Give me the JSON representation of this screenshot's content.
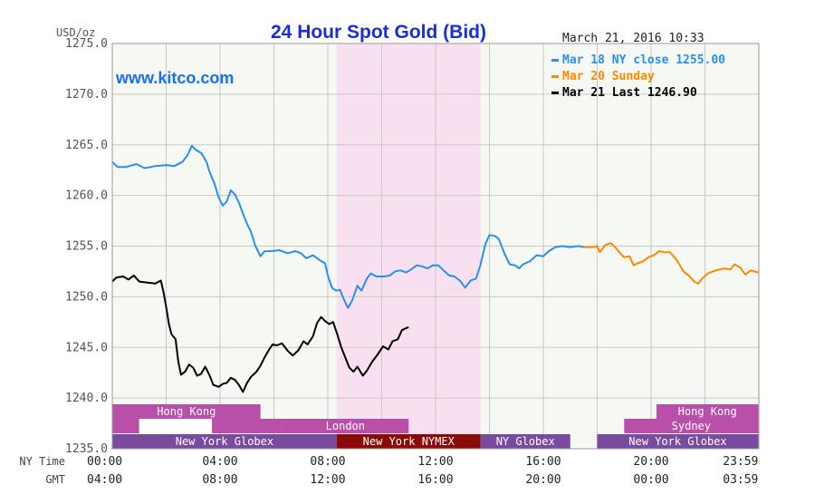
{
  "chart_data": {
    "type": "line",
    "title": "24 Hour Spot Gold (Bid)",
    "watermark": "www.kitco.com",
    "timestamp": "March 21, 2016 10:33",
    "y_unit_label": "USD/oz",
    "ylim": [
      1235.0,
      1275.0
    ],
    "y_ticks": [
      "1275.0",
      "1270.0",
      "1265.0",
      "1260.0",
      "1255.0",
      "1250.0",
      "1245.0",
      "1240.0",
      "1235.0"
    ],
    "xlim": [
      0,
      24
    ],
    "x_tick_rows": [
      {
        "label": "NY Time",
        "ticks": [
          "00:00",
          "04:00",
          "08:00",
          "12:00",
          "16:00",
          "20:00",
          "23:59"
        ]
      },
      {
        "label": "GMT",
        "ticks": [
          "04:00",
          "08:00",
          "12:00",
          "16:00",
          "20:00",
          "00:00",
          "03:59"
        ]
      }
    ],
    "x_tick_hours": [
      0,
      4,
      8,
      12,
      16,
      20,
      23.98
    ],
    "grid": true,
    "highlight_band": {
      "from": 8.33,
      "to": 13.67,
      "color": "#f8e0f0"
    },
    "legend_position": "top-right",
    "legend": [
      {
        "label": "Mar 18 NY close 1255.00",
        "color": "#2a8fef"
      },
      {
        "label": "Mar 20 Sunday",
        "color": "#ff8800"
      },
      {
        "label": "Mar 21 Last 1246.90",
        "color": "#000000"
      }
    ],
    "series": [
      {
        "name": "Mar 18 NY close 1255.00",
        "color": "#2a8fef",
        "points": [
          [
            0,
            1263.3
          ],
          [
            0.2,
            1262.8
          ],
          [
            0.5,
            1262.8
          ],
          [
            0.9,
            1263.1
          ],
          [
            1.2,
            1262.7
          ],
          [
            1.6,
            1262.9
          ],
          [
            2.0,
            1263.0
          ],
          [
            2.3,
            1262.9
          ],
          [
            2.6,
            1263.3
          ],
          [
            2.8,
            1264.0
          ],
          [
            2.95,
            1264.9
          ],
          [
            3.1,
            1264.5
          ],
          [
            3.3,
            1264.2
          ],
          [
            3.5,
            1263.3
          ],
          [
            3.6,
            1262.4
          ],
          [
            3.8,
            1261.1
          ],
          [
            3.95,
            1259.8
          ],
          [
            4.1,
            1259.0
          ],
          [
            4.25,
            1259.4
          ],
          [
            4.4,
            1260.5
          ],
          [
            4.55,
            1260.1
          ],
          [
            4.7,
            1259.3
          ],
          [
            4.85,
            1258.2
          ],
          [
            5.0,
            1257.2
          ],
          [
            5.15,
            1256.4
          ],
          [
            5.3,
            1255.1
          ],
          [
            5.5,
            1254.0
          ],
          [
            5.65,
            1254.5
          ],
          [
            5.9,
            1254.5
          ],
          [
            6.2,
            1254.6
          ],
          [
            6.5,
            1254.3
          ],
          [
            6.8,
            1254.5
          ],
          [
            7.0,
            1254.3
          ],
          [
            7.2,
            1253.8
          ],
          [
            7.45,
            1254.1
          ],
          [
            7.7,
            1253.6
          ],
          [
            7.9,
            1253.3
          ],
          [
            8.0,
            1252.1
          ],
          [
            8.15,
            1250.9
          ],
          [
            8.3,
            1250.6
          ],
          [
            8.45,
            1250.7
          ],
          [
            8.6,
            1249.7
          ],
          [
            8.75,
            1248.9
          ],
          [
            8.9,
            1249.6
          ],
          [
            9.1,
            1251.1
          ],
          [
            9.25,
            1250.6
          ],
          [
            9.45,
            1251.8
          ],
          [
            9.6,
            1252.3
          ],
          [
            9.8,
            1252.0
          ],
          [
            10.1,
            1252.0
          ],
          [
            10.3,
            1252.1
          ],
          [
            10.5,
            1252.5
          ],
          [
            10.7,
            1252.6
          ],
          [
            10.9,
            1252.4
          ],
          [
            11.1,
            1252.7
          ],
          [
            11.3,
            1253.1
          ],
          [
            11.5,
            1253.0
          ],
          [
            11.7,
            1252.8
          ],
          [
            11.9,
            1253.1
          ],
          [
            12.1,
            1253.1
          ],
          [
            12.3,
            1252.6
          ],
          [
            12.5,
            1252.1
          ],
          [
            12.7,
            1252.0
          ],
          [
            12.9,
            1251.6
          ],
          [
            13.1,
            1250.9
          ],
          [
            13.3,
            1251.6
          ],
          [
            13.5,
            1251.8
          ],
          [
            13.65,
            1253.0
          ],
          [
            13.85,
            1255.2
          ],
          [
            14.0,
            1256.1
          ],
          [
            14.2,
            1256.0
          ],
          [
            14.35,
            1255.7
          ],
          [
            14.55,
            1254.3
          ],
          [
            14.75,
            1253.2
          ],
          [
            14.95,
            1253.1
          ],
          [
            15.1,
            1252.8
          ],
          [
            15.25,
            1253.2
          ],
          [
            15.5,
            1253.5
          ],
          [
            15.75,
            1254.1
          ],
          [
            16.0,
            1254.0
          ],
          [
            16.2,
            1254.5
          ],
          [
            16.45,
            1254.9
          ],
          [
            16.7,
            1255.0
          ],
          [
            17.0,
            1254.9
          ],
          [
            17.3,
            1255.0
          ],
          [
            17.5,
            1254.9
          ]
        ]
      },
      {
        "name": "Mar 20 Sunday",
        "color": "#ff8800",
        "points": [
          [
            17.5,
            1254.9
          ],
          [
            17.9,
            1254.9
          ],
          [
            18.0,
            1255.0
          ],
          [
            18.1,
            1254.4
          ],
          [
            18.3,
            1255.1
          ],
          [
            18.5,
            1255.3
          ],
          [
            18.7,
            1254.8
          ],
          [
            18.85,
            1254.3
          ],
          [
            19.0,
            1253.9
          ],
          [
            19.2,
            1254.0
          ],
          [
            19.35,
            1253.1
          ],
          [
            19.5,
            1253.3
          ],
          [
            19.7,
            1253.5
          ],
          [
            19.9,
            1253.9
          ],
          [
            20.1,
            1254.1
          ],
          [
            20.3,
            1254.5
          ],
          [
            20.5,
            1254.4
          ],
          [
            20.7,
            1254.4
          ],
          [
            20.9,
            1253.8
          ],
          [
            21.05,
            1253.2
          ],
          [
            21.2,
            1252.5
          ],
          [
            21.4,
            1252.1
          ],
          [
            21.6,
            1251.5
          ],
          [
            21.75,
            1251.3
          ],
          [
            21.9,
            1251.8
          ],
          [
            22.1,
            1252.3
          ],
          [
            22.4,
            1252.6
          ],
          [
            22.7,
            1252.8
          ],
          [
            22.95,
            1252.7
          ],
          [
            23.1,
            1253.2
          ],
          [
            23.3,
            1252.9
          ],
          [
            23.5,
            1252.2
          ],
          [
            23.7,
            1252.6
          ],
          [
            23.98,
            1252.4
          ]
        ]
      },
      {
        "name": "Mar 21 Last 1246.90",
        "color": "#000000",
        "points": [
          [
            0,
            1251.5
          ],
          [
            0.15,
            1251.9
          ],
          [
            0.4,
            1252.0
          ],
          [
            0.6,
            1251.7
          ],
          [
            0.8,
            1252.1
          ],
          [
            1.0,
            1251.5
          ],
          [
            1.3,
            1251.4
          ],
          [
            1.6,
            1251.3
          ],
          [
            1.8,
            1251.6
          ],
          [
            1.9,
            1250.5
          ],
          [
            2.0,
            1249.0
          ],
          [
            2.1,
            1247.3
          ],
          [
            2.2,
            1246.3
          ],
          [
            2.35,
            1245.8
          ],
          [
            2.45,
            1243.6
          ],
          [
            2.55,
            1242.3
          ],
          [
            2.7,
            1242.6
          ],
          [
            2.85,
            1243.3
          ],
          [
            3.0,
            1243.0
          ],
          [
            3.15,
            1242.2
          ],
          [
            3.3,
            1242.4
          ],
          [
            3.45,
            1243.1
          ],
          [
            3.6,
            1242.3
          ],
          [
            3.75,
            1241.3
          ],
          [
            3.95,
            1241.1
          ],
          [
            4.1,
            1241.4
          ],
          [
            4.25,
            1241.5
          ],
          [
            4.4,
            1242.0
          ],
          [
            4.55,
            1241.8
          ],
          [
            4.7,
            1241.3
          ],
          [
            4.85,
            1240.6
          ],
          [
            5.0,
            1241.5
          ],
          [
            5.15,
            1242.1
          ],
          [
            5.35,
            1242.6
          ],
          [
            5.5,
            1243.2
          ],
          [
            5.65,
            1244.0
          ],
          [
            5.8,
            1244.7
          ],
          [
            5.95,
            1245.3
          ],
          [
            6.1,
            1245.2
          ],
          [
            6.3,
            1245.4
          ],
          [
            6.5,
            1244.7
          ],
          [
            6.7,
            1244.2
          ],
          [
            6.9,
            1244.7
          ],
          [
            7.1,
            1245.6
          ],
          [
            7.25,
            1245.3
          ],
          [
            7.45,
            1246.1
          ],
          [
            7.6,
            1247.4
          ],
          [
            7.75,
            1248.0
          ],
          [
            7.9,
            1247.6
          ],
          [
            8.05,
            1247.3
          ],
          [
            8.2,
            1247.5
          ],
          [
            8.35,
            1246.3
          ],
          [
            8.5,
            1245.0
          ],
          [
            8.65,
            1244.0
          ],
          [
            8.8,
            1243.0
          ],
          [
            8.95,
            1242.6
          ],
          [
            9.1,
            1243.1
          ],
          [
            9.3,
            1242.2
          ],
          [
            9.45,
            1242.7
          ],
          [
            9.65,
            1243.6
          ],
          [
            9.85,
            1244.3
          ],
          [
            10.05,
            1245.1
          ],
          [
            10.25,
            1244.8
          ],
          [
            10.4,
            1245.6
          ],
          [
            10.6,
            1245.8
          ],
          [
            10.75,
            1246.7
          ],
          [
            10.9,
            1246.9
          ],
          [
            11.0,
            1247.0
          ]
        ]
      }
    ],
    "market_sessions": [
      {
        "label": "Hong Kong",
        "from": 0,
        "to": 5.5,
        "row": 1,
        "fill": "#b84fa8",
        "text_color": "#ffffff"
      },
      {
        "label": "Hong Kong",
        "from": 20.2,
        "to": 23.98,
        "row": 1,
        "fill": "#b84fa8",
        "text_color": "#ffffff"
      },
      {
        "label": "",
        "from": 0,
        "to": 1.0,
        "row": 2,
        "fill": "#b84fa8",
        "text_color": "#ffffff"
      },
      {
        "label": "",
        "from": 1.0,
        "to": 3.7,
        "row": 2,
        "fill": "#ffffff",
        "text_color": "#ffffff"
      },
      {
        "label": "",
        "from": 3.7,
        "to": 6.3,
        "row": 2,
        "fill": "#b84fa8",
        "text_color": "#ffffff"
      },
      {
        "label": "London",
        "from": 6.3,
        "to": 11.0,
        "row": 2,
        "fill": "#b84fa8",
        "text_color": "#ffffff"
      },
      {
        "label": "Sydney",
        "from": 19.0,
        "to": 23.98,
        "row": 2,
        "fill": "#b84fa8",
        "text_color": "#ffffff"
      },
      {
        "label": "New York Globex",
        "from": 0,
        "to": 8.33,
        "row": 3,
        "fill": "#7a4a9e",
        "text_color": "#ffffff"
      },
      {
        "label": "New York NYMEX",
        "from": 8.33,
        "to": 13.67,
        "row": 3,
        "fill": "#8a0a0a",
        "text_color": "#ffffff"
      },
      {
        "label": "NY Globex",
        "from": 13.67,
        "to": 17.0,
        "row": 3,
        "fill": "#7a4a9e",
        "text_color": "#ffffff"
      },
      {
        "label": "New York Globex",
        "from": 18.0,
        "to": 23.98,
        "row": 3,
        "fill": "#7a4a9e",
        "text_color": "#ffffff"
      }
    ],
    "colors": {
      "plot_background": "#f6f8f4",
      "grid": "#c8c8c8",
      "title": "#1a2ed8",
      "watermark": "#1a6fef",
      "axis_text": "#555555"
    }
  }
}
